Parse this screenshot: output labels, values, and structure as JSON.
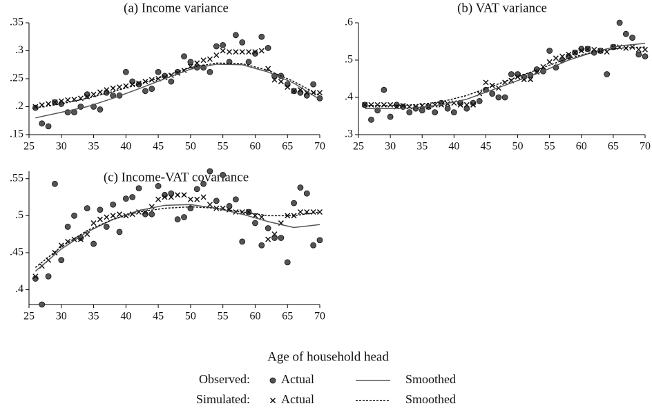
{
  "chart_data": [
    {
      "type": "scatter",
      "title": "(a) Income variance",
      "x": [
        26,
        27,
        28,
        29,
        30,
        31,
        32,
        33,
        34,
        35,
        36,
        37,
        38,
        39,
        40,
        41,
        42,
        43,
        44,
        45,
        46,
        47,
        48,
        49,
        50,
        51,
        52,
        53,
        54,
        55,
        56,
        57,
        58,
        59,
        60,
        61,
        62,
        63,
        64,
        65,
        66,
        67,
        68,
        69,
        70
      ],
      "xlim": [
        25,
        70
      ],
      "xticks": [
        25,
        30,
        35,
        40,
        45,
        50,
        55,
        60,
        65,
        70
      ],
      "ylim": [
        0.15,
        0.35
      ],
      "yticks": [
        {
          "value": 0.15,
          "label": ".15"
        },
        {
          "value": 0.2,
          "label": ".2"
        },
        {
          "value": 0.25,
          "label": ".25"
        },
        {
          "value": 0.3,
          "label": ".3"
        },
        {
          "value": 0.35,
          "label": ".35"
        }
      ],
      "series": [
        {
          "marker": "circle",
          "color": "#555555",
          "values": [
            0.198,
            0.17,
            0.165,
            0.208,
            0.205,
            0.19,
            0.19,
            0.2,
            0.222,
            0.2,
            0.195,
            0.225,
            0.22,
            0.22,
            0.262,
            0.245,
            0.24,
            0.228,
            0.232,
            0.262,
            0.255,
            0.245,
            0.262,
            0.29,
            0.28,
            0.27,
            0.27,
            0.262,
            0.308,
            0.31,
            0.28,
            0.328,
            0.315,
            0.28,
            0.295,
            0.325,
            0.305,
            0.255,
            0.255,
            0.24,
            0.228,
            0.225,
            0.22,
            0.24,
            0.215
          ]
        },
        {
          "marker": "x",
          "color": "#111111",
          "values": [
            0.2,
            0.203,
            0.205,
            0.208,
            0.21,
            0.212,
            0.213,
            0.215,
            0.218,
            0.222,
            0.226,
            0.23,
            0.233,
            0.235,
            0.237,
            0.24,
            0.242,
            0.245,
            0.248,
            0.25,
            0.252,
            0.256,
            0.26,
            0.265,
            0.272,
            0.278,
            0.283,
            0.285,
            0.292,
            0.3,
            0.298,
            0.298,
            0.298,
            0.298,
            0.298,
            0.3,
            0.268,
            0.248,
            0.245,
            0.235,
            0.228,
            0.23,
            0.225,
            0.225,
            0.225
          ]
        },
        {
          "line": "solid",
          "color": "#555555",
          "x": [
            26,
            30,
            34,
            38,
            42,
            46,
            50,
            54,
            58,
            62,
            66,
            70
          ],
          "values": [
            0.18,
            0.19,
            0.2,
            0.215,
            0.232,
            0.25,
            0.267,
            0.276,
            0.275,
            0.262,
            0.242,
            0.213
          ]
        },
        {
          "line": "dashed",
          "color": "#111111",
          "x": [
            26,
            30,
            34,
            38,
            42,
            46,
            50,
            54,
            58,
            62,
            66,
            70
          ],
          "values": [
            0.198,
            0.205,
            0.215,
            0.227,
            0.24,
            0.255,
            0.27,
            0.278,
            0.277,
            0.265,
            0.245,
            0.22
          ]
        }
      ]
    },
    {
      "type": "scatter",
      "title": "(b) VAT variance",
      "x": [
        26,
        27,
        28,
        29,
        30,
        31,
        32,
        33,
        34,
        35,
        36,
        37,
        38,
        39,
        40,
        41,
        42,
        43,
        44,
        45,
        46,
        47,
        48,
        49,
        50,
        51,
        52,
        53,
        54,
        55,
        56,
        57,
        58,
        59,
        60,
        61,
        62,
        63,
        64,
        65,
        66,
        67,
        68,
        69,
        70
      ],
      "xlim": [
        25,
        70
      ],
      "xticks": [
        25,
        30,
        35,
        40,
        45,
        50,
        55,
        60,
        65,
        70
      ],
      "ylim": [
        0.3,
        0.6
      ],
      "yticks": [
        {
          "value": 0.3,
          "label": ".3"
        },
        {
          "value": 0.4,
          "label": ".4"
        },
        {
          "value": 0.5,
          "label": ".5"
        },
        {
          "value": 0.6,
          "label": ".6"
        }
      ],
      "series": [
        {
          "marker": "circle",
          "color": "#555555",
          "values": [
            0.38,
            0.34,
            0.365,
            0.42,
            0.348,
            0.38,
            0.375,
            0.36,
            0.37,
            0.365,
            0.375,
            0.36,
            0.385,
            0.37,
            0.36,
            0.385,
            0.37,
            0.385,
            0.39,
            0.42,
            0.41,
            0.4,
            0.4,
            0.462,
            0.462,
            0.455,
            0.46,
            0.475,
            0.47,
            0.525,
            0.48,
            0.5,
            0.51,
            0.52,
            0.53,
            0.53,
            0.52,
            0.525,
            0.462,
            0.535,
            0.6,
            0.57,
            0.56,
            0.515,
            0.51
          ]
        },
        {
          "marker": "x",
          "color": "#111111",
          "values": [
            0.38,
            0.38,
            0.38,
            0.38,
            0.38,
            0.375,
            0.378,
            0.375,
            0.375,
            0.378,
            0.375,
            0.38,
            0.38,
            0.383,
            0.385,
            0.38,
            0.38,
            0.38,
            0.41,
            0.44,
            0.432,
            0.425,
            0.44,
            0.445,
            0.455,
            0.448,
            0.448,
            0.468,
            0.482,
            0.495,
            0.505,
            0.51,
            0.515,
            0.52,
            0.525,
            0.53,
            0.528,
            0.525,
            0.522,
            0.535,
            0.535,
            0.532,
            0.535,
            0.528,
            0.528
          ]
        },
        {
          "line": "solid",
          "color": "#555555",
          "x": [
            26,
            30,
            34,
            38,
            42,
            46,
            50,
            54,
            58,
            62,
            66,
            70
          ],
          "values": [
            0.37,
            0.37,
            0.372,
            0.38,
            0.395,
            0.42,
            0.445,
            0.47,
            0.5,
            0.522,
            0.538,
            0.545
          ]
        },
        {
          "line": "dashed",
          "color": "#111111",
          "x": [
            26,
            30,
            34,
            38,
            42,
            46,
            50,
            54,
            58,
            62,
            66,
            70
          ],
          "values": [
            0.378,
            0.378,
            0.38,
            0.388,
            0.405,
            0.43,
            0.455,
            0.48,
            0.505,
            0.522,
            0.532,
            0.535
          ]
        }
      ]
    },
    {
      "type": "scatter",
      "title": "(c) Income-VAT covariance",
      "x": [
        26,
        27,
        28,
        29,
        30,
        31,
        32,
        33,
        34,
        35,
        36,
        37,
        38,
        39,
        40,
        41,
        42,
        43,
        44,
        45,
        46,
        47,
        48,
        49,
        50,
        51,
        52,
        53,
        54,
        55,
        56,
        57,
        58,
        59,
        60,
        61,
        62,
        63,
        64,
        65,
        66,
        67,
        68,
        69,
        70
      ],
      "xlim": [
        25,
        70
      ],
      "xticks": [
        25,
        30,
        35,
        40,
        45,
        50,
        55,
        60,
        65,
        70
      ],
      "ylim": [
        0.38,
        0.56
      ],
      "yticks": [
        {
          "value": 0.4,
          "label": ".4"
        },
        {
          "value": 0.45,
          "label": ".45"
        },
        {
          "value": 0.5,
          "label": ".5"
        },
        {
          "value": 0.55,
          "label": ".55"
        }
      ],
      "series": [
        {
          "marker": "circle",
          "color": "#555555",
          "values": [
            0.415,
            0.38,
            0.418,
            0.543,
            0.44,
            0.485,
            0.5,
            0.47,
            0.51,
            0.462,
            0.508,
            0.485,
            0.515,
            0.478,
            0.523,
            0.525,
            0.537,
            0.502,
            0.502,
            0.54,
            0.528,
            0.53,
            0.495,
            0.498,
            0.51,
            0.536,
            0.543,
            0.56,
            0.52,
            0.555,
            0.513,
            0.522,
            0.465,
            0.505,
            0.49,
            0.46,
            0.483,
            0.47,
            0.47,
            0.437,
            0.517,
            0.538,
            0.53,
            0.46,
            0.467
          ]
        },
        {
          "marker": "x",
          "color": "#111111",
          "values": [
            0.418,
            0.432,
            0.44,
            0.45,
            0.46,
            0.465,
            0.468,
            0.468,
            0.475,
            0.49,
            0.495,
            0.498,
            0.5,
            0.502,
            0.5,
            0.502,
            0.505,
            0.505,
            0.512,
            0.522,
            0.525,
            0.525,
            0.528,
            0.528,
            0.522,
            0.522,
            0.525,
            0.515,
            0.51,
            0.51,
            0.508,
            0.505,
            0.505,
            0.505,
            0.5,
            0.498,
            0.468,
            0.475,
            0.49,
            0.5,
            0.5,
            0.505,
            0.505,
            0.505,
            0.505
          ]
        },
        {
          "line": "solid",
          "color": "#555555",
          "x": [
            26,
            30,
            34,
            38,
            42,
            46,
            50,
            54,
            58,
            62,
            66,
            70
          ],
          "values": [
            0.425,
            0.455,
            0.478,
            0.495,
            0.507,
            0.514,
            0.515,
            0.51,
            0.502,
            0.492,
            0.484,
            0.488
          ]
        },
        {
          "line": "dashed",
          "color": "#111111",
          "x": [
            26,
            30,
            34,
            38,
            42,
            46,
            50,
            54,
            58,
            62,
            66,
            70
          ],
          "values": [
            0.43,
            0.458,
            0.48,
            0.495,
            0.505,
            0.51,
            0.512,
            0.51,
            0.505,
            0.5,
            0.5,
            0.505
          ]
        }
      ]
    }
  ],
  "xlabel": "Age of household head",
  "legend": {
    "rows": [
      {
        "label": "Observed:",
        "marker": "Actual",
        "line": "Smoothed"
      },
      {
        "label": "Simulated:",
        "marker": "Actual",
        "line": "Smoothed"
      }
    ]
  }
}
